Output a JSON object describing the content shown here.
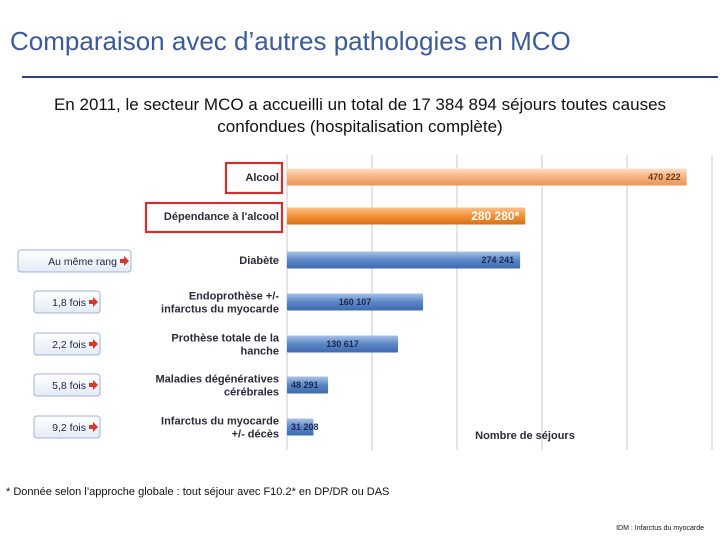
{
  "header": {
    "title": "Comparaison avec d’autres pathologies en MCO",
    "subtitle": "En 2011, le secteur MCO a accueilli un total de 17 384 894 séjours toutes causes confondues (hospitalisation complète)"
  },
  "chart_data": {
    "type": "bar",
    "orientation": "horizontal",
    "categories": [
      "Alcool",
      "Dépendance à l'alcool",
      "Diabète",
      "Endoprothèse +/- infarctus du myocarde",
      "Prothèse totale de la hanche",
      "Maladies dégénératives cérébrales",
      "Infarctus du myocarde +/- décès"
    ],
    "values": [
      470222,
      280280,
      274241,
      160107,
      130617,
      48291,
      31208
    ],
    "value_labels": [
      "470 222",
      "280 280*",
      "274 241",
      "160 107",
      "130 617",
      "48 291",
      "31 208"
    ],
    "xlabel": "Nombre de séjours",
    "xlim": [
      0,
      500000
    ],
    "grid": true,
    "highlighted": [
      "Alcool",
      "Dépendance à l'alcool"
    ],
    "comparisons": [
      "Au même rang",
      "1,8 fois",
      "2,2 fois",
      "5,8 fois",
      "9,2  fois"
    ],
    "colors": {
      "alcool": "#f7b27e",
      "dependance": "#f39237",
      "others": "#5b86c6",
      "highlight_border": "#d22f2f",
      "grid": "#c9c9c9"
    }
  },
  "footnote": "* Donnée selon l’approche globale : tout séjour avec F10.2* en DP/DR ou DAS",
  "abbreviation": "IDM : Infarctus du myocarde"
}
